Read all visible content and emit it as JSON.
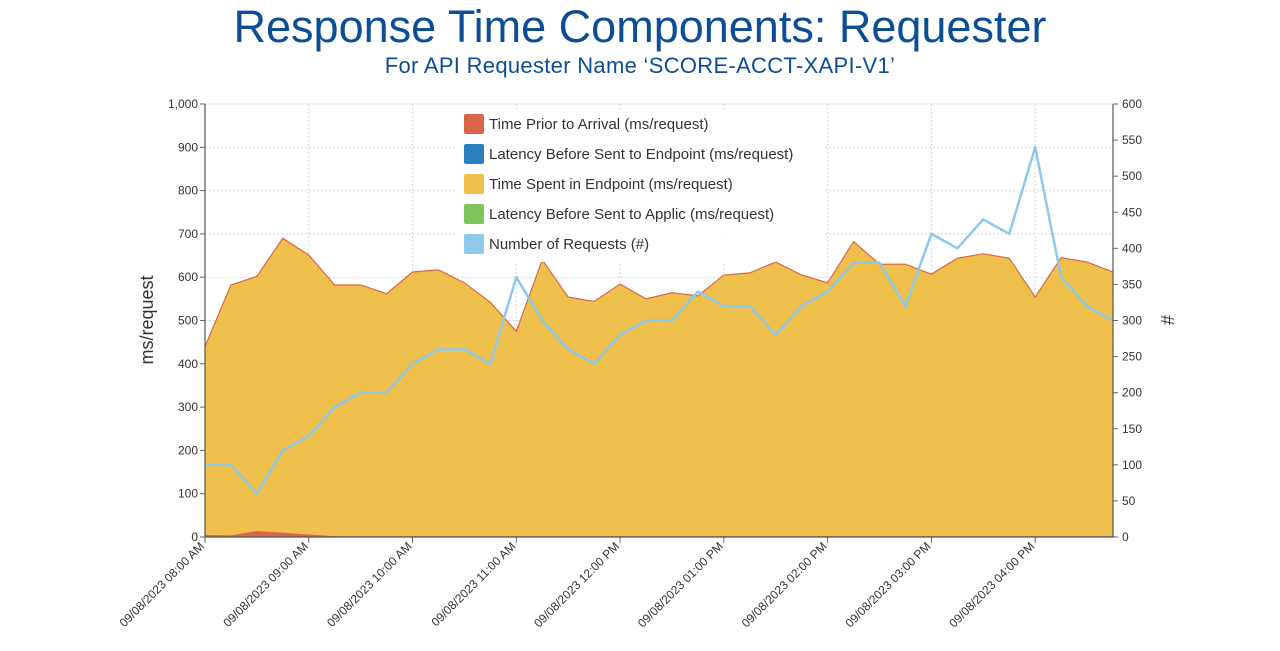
{
  "header": {
    "title": "Response Time Components: Requester",
    "subtitle": "For API Requester Name ‘SCORE-ACCT-XAPI-V1’"
  },
  "chart_data": {
    "type": "area",
    "ylabel": "ms/request",
    "y2label": "#",
    "ylim": [
      0,
      1000
    ],
    "y2lim": [
      0,
      600
    ],
    "y_ticks": [
      "0",
      "100",
      "200",
      "300",
      "400",
      "500",
      "600",
      "700",
      "800",
      "900",
      "1,000"
    ],
    "y2_ticks": [
      "0",
      "50",
      "100",
      "150",
      "200",
      "250",
      "300",
      "350",
      "400",
      "450",
      "500",
      "550",
      "600"
    ],
    "x_ticks": [
      "09/08/2023 08:00 AM",
      "09/08/2023 09:00 AM",
      "09/08/2023 10:00 AM",
      "09/08/2023 11:00 AM",
      "09/08/2023 12:00 PM",
      "09/08/2023 01:00 PM",
      "09/08/2023 02:00 PM",
      "09/08/2023 03:00 PM",
      "09/08/2023 04:00 PM"
    ],
    "x": [
      "08:00 AM",
      "08:15 AM",
      "08:30 AM",
      "08:45 AM",
      "09:00 AM",
      "09:15 AM",
      "09:30 AM",
      "09:45 AM",
      "10:00 AM",
      "10:15 AM",
      "10:30 AM",
      "10:45 AM",
      "11:00 AM",
      "11:15 AM",
      "11:30 AM",
      "11:45 AM",
      "12:00 PM",
      "12:15 PM",
      "12:30 PM",
      "12:45 PM",
      "01:00 PM",
      "01:15 PM",
      "01:30 PM",
      "01:45 PM",
      "02:00 PM",
      "02:15 PM",
      "02:30 PM",
      "02:45 PM",
      "03:00 PM",
      "03:15 PM",
      "03:30 PM",
      "03:45 PM",
      "04:00 PM",
      "04:15 PM",
      "04:30 PM",
      "04:45 PM"
    ],
    "legend_position": "top-center",
    "series": [
      {
        "name": "Time Prior to Arrival (ms/request)",
        "color": "#d9664a",
        "axis": "left",
        "values": [
          5,
          4,
          14,
          10,
          6,
          2,
          2,
          2,
          2,
          2,
          2,
          2,
          2,
          2,
          2,
          2,
          2,
          2,
          2,
          2,
          2,
          2,
          2,
          2,
          2,
          2,
          2,
          2,
          2,
          2,
          2,
          2,
          2,
          2,
          2,
          2
        ]
      },
      {
        "name": "Latency Before Sent to Endpoint (ms/request)",
        "color": "#2a7fc0",
        "axis": "left",
        "values": [
          0,
          0,
          0,
          0,
          0,
          0,
          0,
          0,
          0,
          0,
          0,
          0,
          0,
          0,
          0,
          0,
          0,
          0,
          0,
          0,
          0,
          0,
          0,
          0,
          0,
          0,
          0,
          0,
          0,
          0,
          0,
          0,
          0,
          0,
          0,
          0
        ]
      },
      {
        "name": "Time Spent in Endpoint (ms/request)",
        "color": "#efc04b",
        "axis": "left",
        "values": [
          435,
          578,
          588,
          680,
          645,
          580,
          580,
          560,
          610,
          615,
          585,
          540,
          473,
          638,
          552,
          542,
          582,
          548,
          562,
          555,
          603,
          608,
          633,
          603,
          585,
          680,
          628,
          628,
          605,
          642,
          652,
          642,
          552,
          643,
          633,
          610
        ]
      },
      {
        "name": "Latency Before Sent to Applic (ms/request)",
        "color": "#7fc55b",
        "axis": "left",
        "values": [
          0,
          0,
          0,
          0,
          0,
          0,
          0,
          0,
          0,
          0,
          0,
          0,
          0,
          0,
          0,
          0,
          0,
          0,
          0,
          0,
          0,
          0,
          0,
          0,
          0,
          0,
          0,
          0,
          0,
          0,
          0,
          0,
          0,
          0,
          0,
          0
        ]
      },
      {
        "name": "Number of Requests (#)",
        "color": "#8ec8ea",
        "axis": "right",
        "type": "line",
        "values": [
          100,
          100,
          60,
          120,
          140,
          180,
          200,
          200,
          240,
          260,
          260,
          240,
          360,
          300,
          260,
          240,
          280,
          300,
          300,
          340,
          320,
          320,
          280,
          320,
          340,
          380,
          380,
          320,
          420,
          400,
          440,
          420,
          540,
          360,
          320,
          300
        ]
      }
    ]
  }
}
